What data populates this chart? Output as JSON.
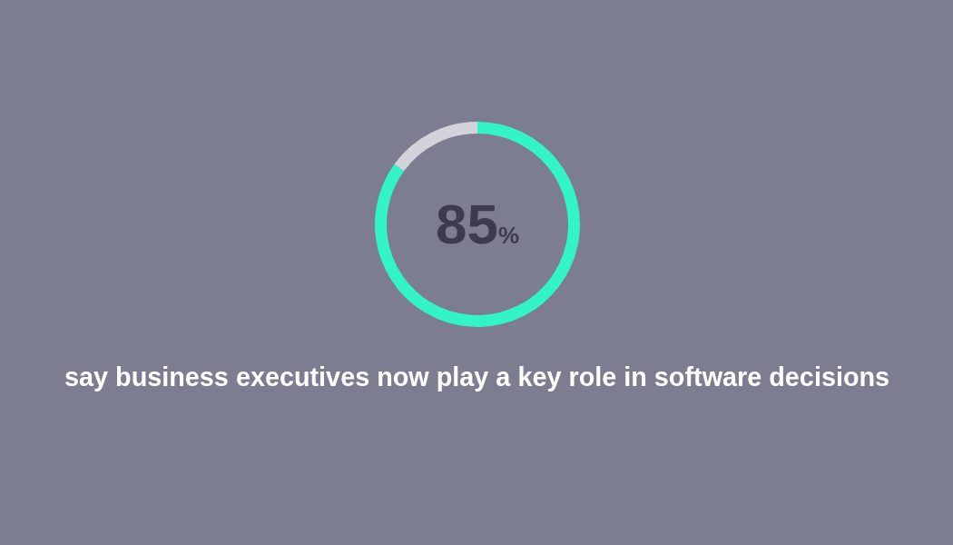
{
  "chart_data": {
    "type": "donut",
    "categories": [
      null,
      null
    ],
    "values": [
      85,
      15
    ],
    "colors": [
      "#33f4c6",
      "#d3d3db"
    ],
    "annotations": [
      "85%",
      "say business executives now play a key role in software decisions"
    ]
  }
}
